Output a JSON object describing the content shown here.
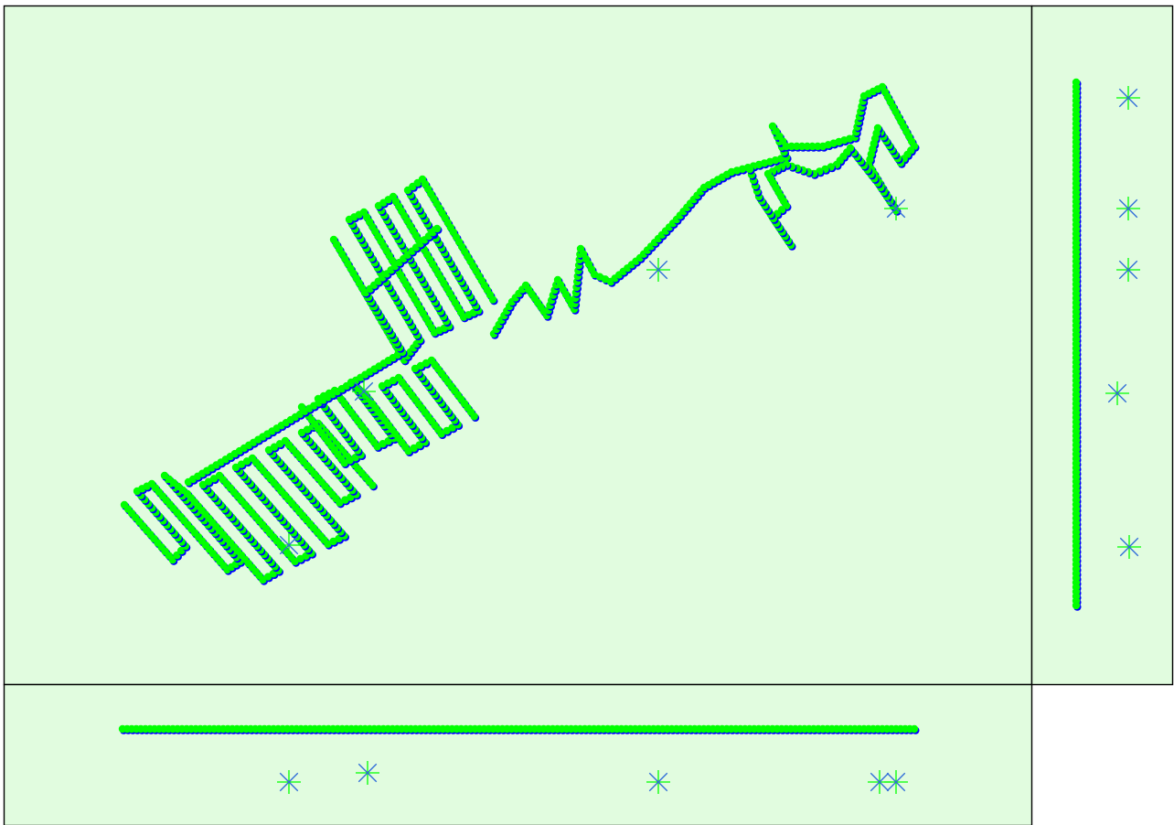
{
  "colors": {
    "background": "#e1fcdf",
    "frame": "#000000",
    "track_fill": "#00ff00",
    "track_shadow": "#0000ff",
    "marker_a": "#00ff00",
    "marker_b": "#2e6bd9"
  },
  "icons": {
    "track_point": "filled-circle",
    "gcp_marker": "asterisk"
  },
  "panels": [
    "top-view",
    "side-view",
    "front-view"
  ]
}
